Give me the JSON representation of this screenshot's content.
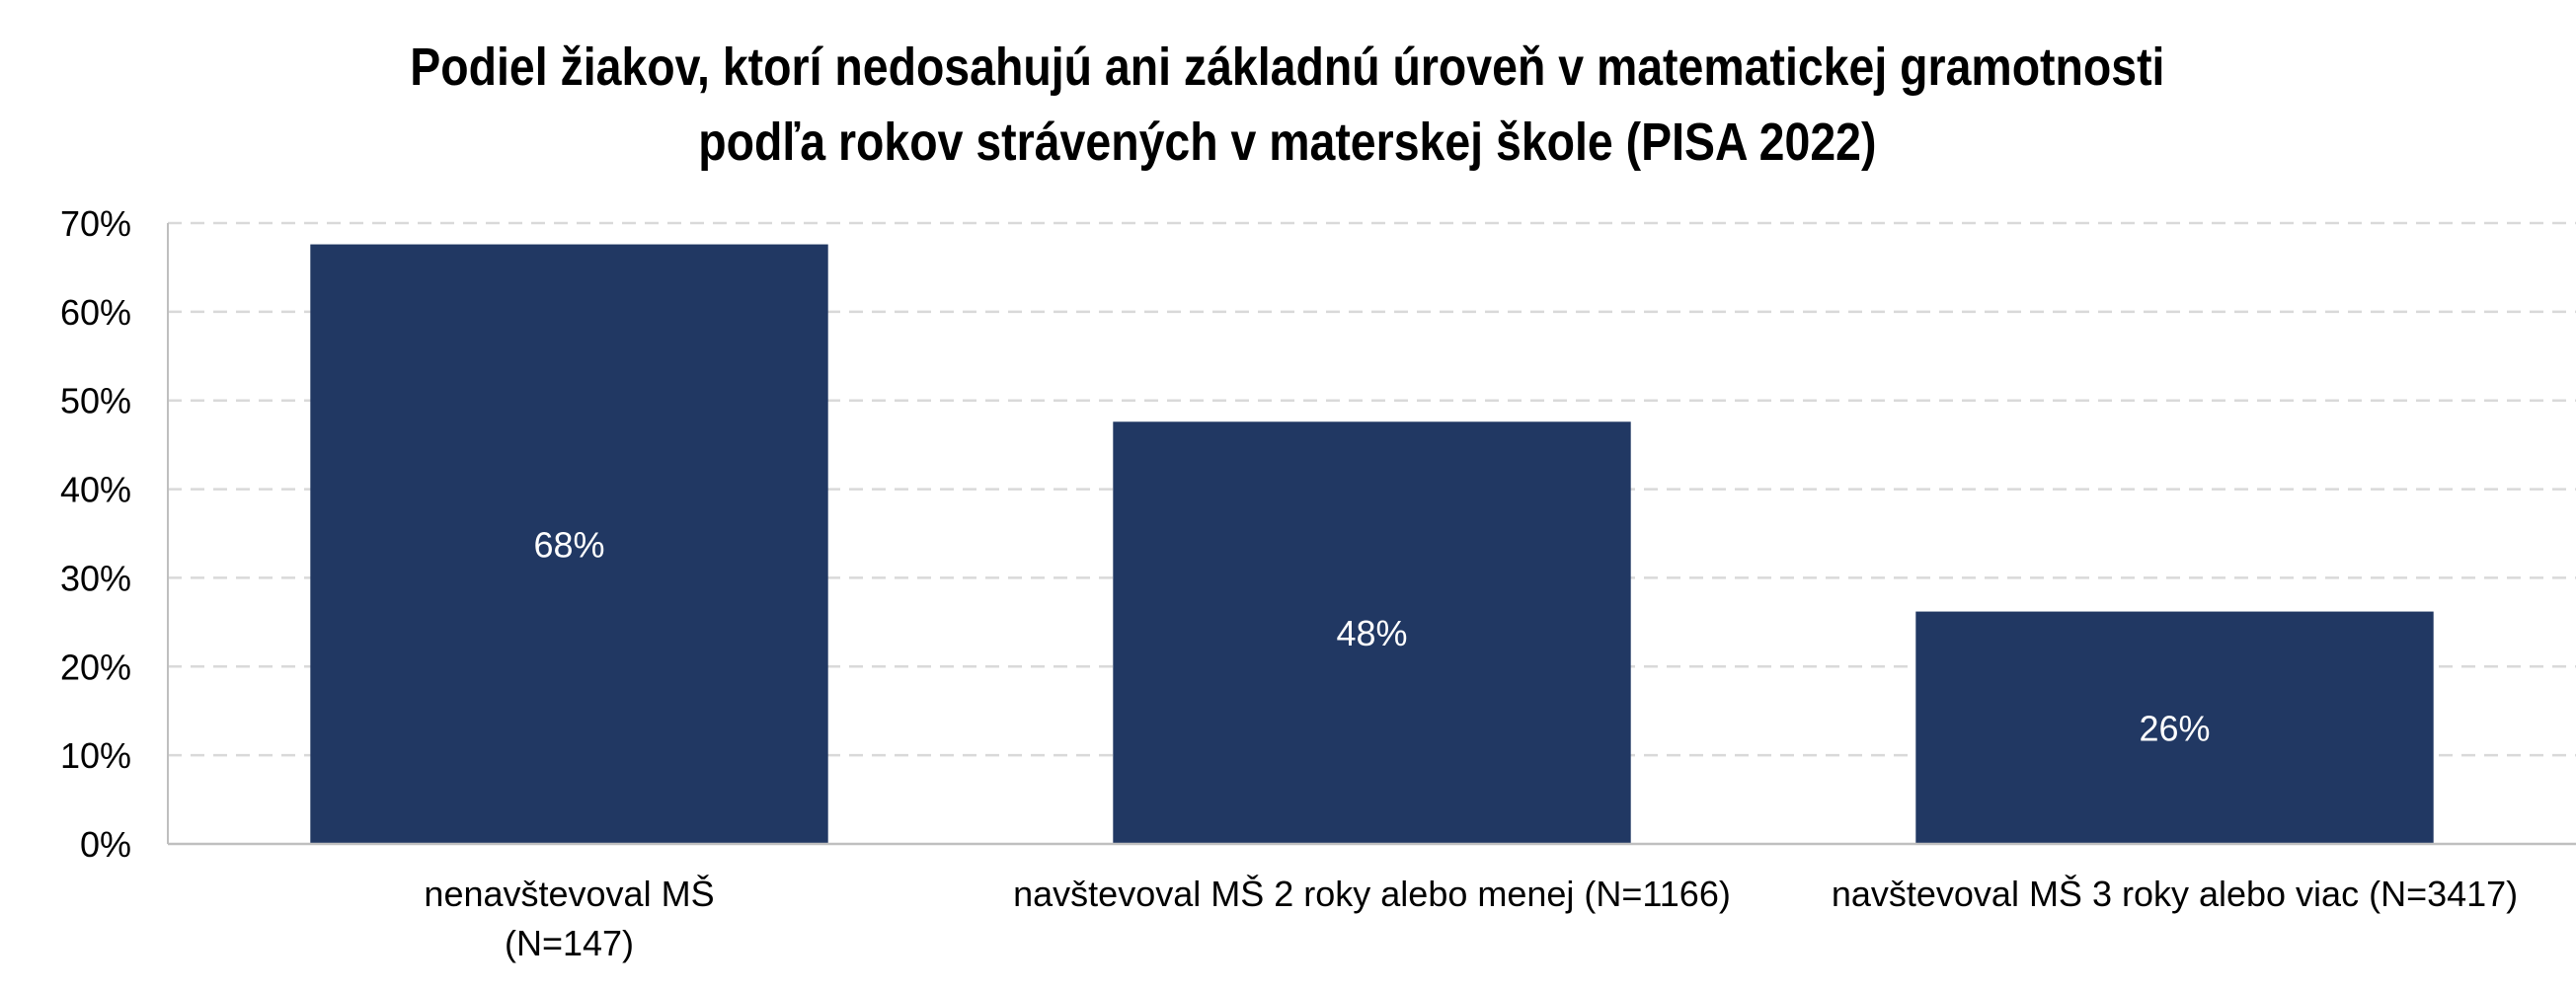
{
  "chart_data": {
    "type": "bar",
    "title": "Podiel žiakov, ktorí nedosahujú ani základnú úroveň v matematickej gramotnosti podľa rokov strávených v materskej škole (PISA 2022)",
    "title_lines": [
      "Podiel žiakov, ktorí nedosahujú ani základnú úroveň v matematickej gramotnosti",
      "podľa rokov strávených v materskej škole (PISA 2022)"
    ],
    "categories": [
      [
        "nenavštevoval MŠ",
        "(N=147)"
      ],
      [
        "navštevoval MŠ 2 roky alebo menej (N=1166)"
      ],
      [
        "navštevoval MŠ 3 roky alebo viac (N=3417)"
      ]
    ],
    "values": [
      67.6,
      47.6,
      26.2
    ],
    "data_labels": [
      "68%",
      "48%",
      "26%"
    ],
    "y_ticks": [
      0,
      10,
      20,
      30,
      40,
      50,
      60,
      70
    ],
    "y_tick_labels": [
      "0%",
      "10%",
      "20%",
      "30%",
      "40%",
      "50%",
      "60%",
      "70%"
    ],
    "ylim": [
      0,
      70
    ],
    "xlabel": "",
    "ylabel": "",
    "grid": true,
    "legend": "none",
    "colors": {
      "bar": "#213863",
      "grid": "#d9d9d9",
      "axis": "#bfbfbf",
      "data_label": "#ffffff",
      "text": "#000000"
    }
  }
}
